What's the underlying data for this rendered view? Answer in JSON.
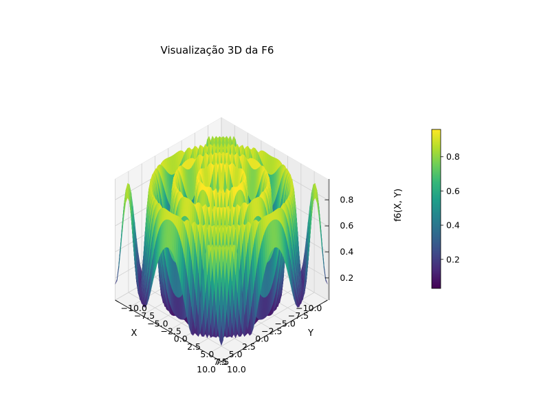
{
  "chart_data": {
    "type": "surface",
    "title": "Visualização 3D da F6",
    "xlabel": "X",
    "ylabel": "Y",
    "zlabel": "f6(X, Y)",
    "function": "f6(x, y) = 0.5 - (sin(sqrt(x^2 + y^2))^2 - 0.5) / (1 + 0.001 (x^2 + y^2))^2",
    "x_range": [
      -10,
      10
    ],
    "y_range": [
      -10,
      10
    ],
    "z_range": [
      0.03,
      0.96
    ],
    "colormap": "viridis",
    "x_ticks": [
      "10.0",
      "7.5",
      "5.0",
      "2.5",
      "0.0",
      "−2.5",
      "−5.0",
      "−7.5",
      "−10.0"
    ],
    "y_ticks": [
      "−10.0",
      "−7.5",
      "−5.0",
      "−2.5",
      "0.0",
      "2.5",
      "5.0",
      "7.5",
      "10.0"
    ],
    "z_ticks": [
      "0.2",
      "0.4",
      "0.6",
      "0.8"
    ],
    "colorbar_ticks": [
      "0.2",
      "0.4",
      "0.6",
      "0.8"
    ],
    "colorbar_range": [
      0.03,
      0.96
    ],
    "grid": true,
    "view": "azimuth 45°, elevation 30°"
  }
}
